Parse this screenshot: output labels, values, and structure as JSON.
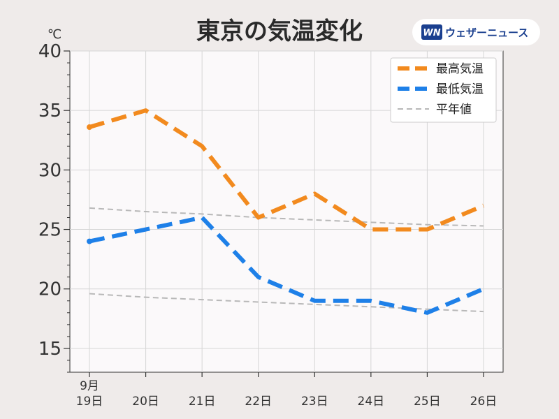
{
  "brand": {
    "logo_text": "WN",
    "name": "ウェザーニュース",
    "accent": "#1a3f8f"
  },
  "chart_data": {
    "type": "line",
    "title": "東京の気温変化",
    "ylabel": "℃",
    "ylim": [
      13,
      40
    ],
    "yticks": [
      15,
      20,
      25,
      30,
      35,
      40
    ],
    "x_month_label": "9月",
    "categories": [
      "19日",
      "20日",
      "21日",
      "22日",
      "23日",
      "24日",
      "25日",
      "26日"
    ],
    "grid": true,
    "legend_position": "top-right",
    "series": [
      {
        "name": "最高気温",
        "color": "#f28a1e",
        "style": "dashed-thick",
        "values": [
          33.6,
          35.0,
          32.0,
          26.0,
          28.0,
          25.0,
          25.0,
          27.0
        ]
      },
      {
        "name": "最低気温",
        "color": "#1e80e8",
        "style": "dashed-thick",
        "values": [
          24.0,
          25.0,
          26.0,
          21.0,
          19.0,
          19.0,
          18.0,
          20.0
        ]
      },
      {
        "name": "平年値",
        "color": "#b8b8b8",
        "style": "dashed-thin",
        "values": [
          26.8,
          26.5,
          26.3,
          26.0,
          25.8,
          25.6,
          25.4,
          25.3
        ]
      },
      {
        "name": "平年値",
        "color": "#b8b8b8",
        "style": "dashed-thin",
        "in_legend": false,
        "values": [
          19.6,
          19.3,
          19.1,
          18.9,
          18.7,
          18.5,
          18.3,
          18.1
        ]
      }
    ]
  }
}
